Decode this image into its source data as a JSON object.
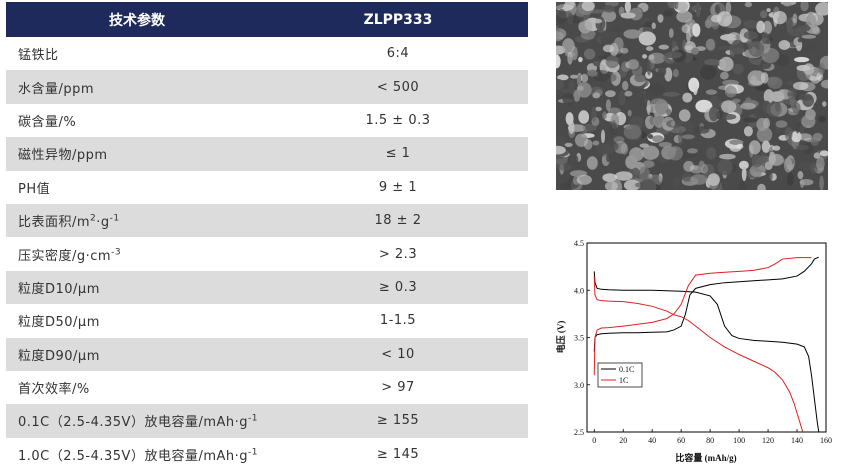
{
  "table": {
    "header": {
      "param": "技术参数",
      "model": "ZLPP333"
    },
    "rows": [
      {
        "name": "锰铁比",
        "value": "6:4"
      },
      {
        "name": "水含量/ppm",
        "value": "< 500"
      },
      {
        "name": "碳含量/%",
        "value": "1.5 ± 0.3"
      },
      {
        "name": "磁性异物/ppm",
        "value": "≤ 1"
      },
      {
        "name": "PH值",
        "value": "9 ± 1"
      },
      {
        "name": "比表面积/m",
        "sup1": "2",
        "mid": "·g",
        "sup2": "-1",
        "value": "18 ± 2"
      },
      {
        "name": "压实密度/g·cm",
        "sup1": "-3",
        "value": "> 2.3"
      },
      {
        "name": "粒度D10/μm",
        "value": "≥ 0.3"
      },
      {
        "name": "粒度D50/μm",
        "value": "1-1.5"
      },
      {
        "name": "粒度D90/μm",
        "value": "< 10"
      },
      {
        "name": "首次效率/%",
        "value": "> 97"
      },
      {
        "name": "0.1C（2.5-4.35V）放电容量/mAh·g",
        "sup1": "-1",
        "value": "≥ 155"
      },
      {
        "name": "1.0C（2.5-4.35V）放电容量/mAh·g",
        "sup1": "-1",
        "value": "≥ 145"
      }
    ]
  },
  "chart_data": {
    "type": "line",
    "xlabel": "比容量 (mAh/g)",
    "ylabel": "电压 (V)",
    "xlim": [
      -5,
      160
    ],
    "ylim": [
      2.5,
      4.5
    ],
    "xticks": [
      "0",
      "20",
      "40",
      "60",
      "80",
      "100",
      "120",
      "140",
      "160"
    ],
    "yticks": [
      "2.5",
      "3.0",
      "3.5",
      "4.0",
      "4.5"
    ],
    "legend_position": "lower-left",
    "series": [
      {
        "name": "0.1C",
        "color": "#000000",
        "charge": {
          "x": [
            0,
            0.5,
            2,
            5,
            10,
            20,
            30,
            40,
            50,
            55,
            60,
            63,
            66,
            70,
            80,
            90,
            100,
            110,
            120,
            130,
            140,
            145,
            150,
            152,
            155
          ],
          "y": [
            3.35,
            3.5,
            3.53,
            3.54,
            3.545,
            3.55,
            3.55,
            3.555,
            3.56,
            3.58,
            3.62,
            3.75,
            3.95,
            4.02,
            4.06,
            4.08,
            4.09,
            4.1,
            4.11,
            4.12,
            4.15,
            4.2,
            4.28,
            4.33,
            4.35
          ]
        },
        "discharge": {
          "x": [
            0,
            0.5,
            2,
            5,
            10,
            20,
            30,
            40,
            50,
            60,
            70,
            80,
            85,
            90,
            95,
            100,
            110,
            120,
            130,
            140,
            145,
            148,
            150,
            152,
            154,
            155
          ],
          "y": [
            4.2,
            4.08,
            4.02,
            4.01,
            4.005,
            4.0,
            4.0,
            4.0,
            3.995,
            3.99,
            3.98,
            3.94,
            3.85,
            3.62,
            3.52,
            3.49,
            3.47,
            3.46,
            3.45,
            3.43,
            3.4,
            3.3,
            3.1,
            2.85,
            2.6,
            2.5
          ]
        }
      },
      {
        "name": "1C",
        "color": "#e02020",
        "charge": {
          "x": [
            0,
            0.5,
            2,
            5,
            10,
            20,
            30,
            40,
            50,
            55,
            60,
            65,
            70,
            80,
            90,
            100,
            110,
            120,
            125,
            130,
            140,
            150
          ],
          "y": [
            3.1,
            3.5,
            3.58,
            3.6,
            3.605,
            3.62,
            3.64,
            3.66,
            3.7,
            3.75,
            3.85,
            4.05,
            4.16,
            4.18,
            4.19,
            4.2,
            4.21,
            4.24,
            4.28,
            4.33,
            4.345,
            4.345
          ]
        },
        "discharge": {
          "x": [
            0,
            0.5,
            2,
            5,
            10,
            20,
            30,
            40,
            50,
            55,
            60,
            65,
            70,
            80,
            90,
            100,
            110,
            120,
            125,
            130,
            135,
            138,
            140,
            142,
            144
          ],
          "y": [
            4.15,
            3.95,
            3.9,
            3.89,
            3.885,
            3.88,
            3.86,
            3.83,
            3.78,
            3.74,
            3.72,
            3.68,
            3.62,
            3.5,
            3.4,
            3.32,
            3.25,
            3.18,
            3.13,
            3.05,
            2.92,
            2.8,
            2.7,
            2.6,
            2.5
          ]
        }
      }
    ]
  },
  "colors": {
    "header_bg": "#1f2a5c",
    "row_alt": "#dcdcdc"
  }
}
